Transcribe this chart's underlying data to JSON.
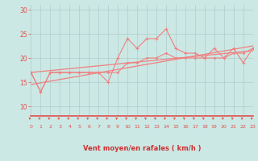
{
  "xlabel": "Vent moyen/en rafales ( km/h )",
  "background_color": "#cbe8e4",
  "grid_color": "#b0cccc",
  "line_color": "#f08080",
  "xmin": 0,
  "xmax": 23,
  "ymin": 8,
  "ymax": 31,
  "yticks": [
    10,
    15,
    20,
    25,
    30
  ],
  "xticks": [
    0,
    1,
    2,
    3,
    4,
    5,
    6,
    7,
    8,
    9,
    10,
    11,
    12,
    13,
    14,
    15,
    16,
    17,
    18,
    19,
    20,
    21,
    22,
    23
  ],
  "line_jagged_x": [
    0,
    1,
    2,
    3,
    4,
    5,
    6,
    7,
    8,
    9,
    10,
    11,
    12,
    13,
    14,
    15,
    16,
    17,
    18,
    19,
    20,
    21,
    22,
    23
  ],
  "line_jagged_y": [
    17,
    13,
    17,
    17,
    17,
    17,
    17,
    17,
    15,
    20,
    24,
    22,
    24,
    24,
    26,
    22,
    21,
    21,
    20,
    22,
    20,
    22,
    19,
    22
  ],
  "line_smooth_x": [
    0,
    1,
    2,
    3,
    4,
    5,
    6,
    7,
    8,
    9,
    10,
    11,
    12,
    13,
    14,
    15,
    16,
    17,
    18,
    19,
    20,
    21,
    22,
    23
  ],
  "line_smooth_y": [
    17,
    13,
    17,
    17,
    17,
    17,
    17,
    17,
    17,
    17,
    19,
    19,
    20,
    20,
    21,
    20,
    20,
    20,
    20,
    20,
    20,
    21,
    21,
    22
  ],
  "trend1_x": [
    0,
    23
  ],
  "trend1_y": [
    17.0,
    21.5
  ],
  "trend2_x": [
    0,
    23
  ],
  "trend2_y": [
    14.5,
    22.5
  ],
  "tick_color": "#e05050",
  "arrow_color": "#e05050",
  "xlabel_color": "#cc3333"
}
